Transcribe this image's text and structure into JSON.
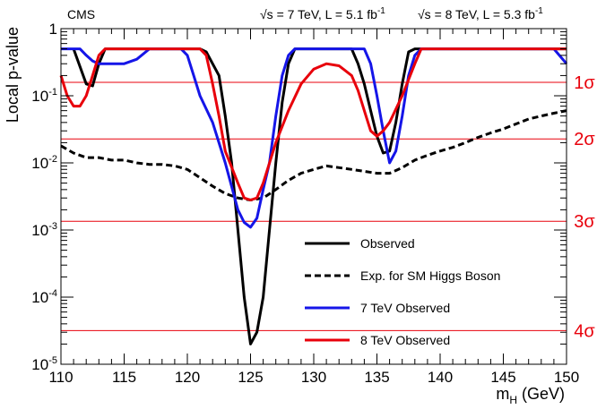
{
  "chart_data": {
    "type": "line",
    "experiment_label": "CMS",
    "energy_label_7": "√s = 7 TeV, L = 5.1 fb",
    "energy_label_8": "√s = 8 TeV, L = 5.3 fb",
    "lumi_unit_sup": "-1",
    "ylabel": "Local p-value",
    "xlabel_main": "m",
    "xlabel_sub": "H",
    "xlabel_unit": " (GeV)",
    "xlim": [
      110,
      150
    ],
    "ylim": [
      1e-05,
      1
    ],
    "yscale": "log",
    "x_ticks": [
      110,
      115,
      120,
      125,
      130,
      135,
      140,
      145,
      150
    ],
    "y_ticks": [
      {
        "value": 1,
        "base": "1",
        "exp": ""
      },
      {
        "value": 0.1,
        "base": "10",
        "exp": "-1"
      },
      {
        "value": 0.01,
        "base": "10",
        "exp": "-2"
      },
      {
        "value": 0.001,
        "base": "10",
        "exp": "-3"
      },
      {
        "value": 0.0001,
        "base": "10",
        "exp": "-4"
      },
      {
        "value": 1e-05,
        "base": "10",
        "exp": "-5"
      }
    ],
    "sigma_lines": [
      {
        "label": "1σ",
        "p": 0.1587
      },
      {
        "label": "2σ",
        "p": 0.02275
      },
      {
        "label": "3σ",
        "p": 0.00135
      },
      {
        "label": "4σ",
        "p": 3.17e-05
      }
    ],
    "series": [
      {
        "name": "Observed",
        "color": "#000000",
        "dash": "solid",
        "points": [
          [
            111,
            0.5
          ],
          [
            112,
            0.15
          ],
          [
            112.5,
            0.14
          ],
          [
            113,
            0.3
          ],
          [
            113.5,
            0.5
          ],
          [
            121,
            0.5
          ],
          [
            121.5,
            0.45
          ],
          [
            122.5,
            0.2
          ],
          [
            123,
            0.05
          ],
          [
            123.5,
            0.01
          ],
          [
            124,
            0.001
          ],
          [
            124.5,
            0.0001
          ],
          [
            125,
            2e-05
          ],
          [
            125.5,
            3e-05
          ],
          [
            126,
            0.0001
          ],
          [
            126.5,
            0.001
          ],
          [
            127,
            0.01
          ],
          [
            127.5,
            0.08
          ],
          [
            128,
            0.3
          ],
          [
            128.5,
            0.5
          ],
          [
            133,
            0.5
          ],
          [
            133.5,
            0.3
          ],
          [
            134,
            0.15
          ],
          [
            134.5,
            0.06
          ],
          [
            135,
            0.025
          ],
          [
            135.5,
            0.014
          ],
          [
            136,
            0.015
          ],
          [
            136.5,
            0.04
          ],
          [
            137,
            0.15
          ],
          [
            137.5,
            0.45
          ],
          [
            138,
            0.5
          ],
          [
            150,
            0.5
          ]
        ]
      },
      {
        "name": "Exp. for SM Higgs Boson",
        "color": "#000000",
        "dash": "dashed",
        "points": [
          [
            110,
            0.018
          ],
          [
            111,
            0.014
          ],
          [
            112,
            0.012
          ],
          [
            113,
            0.012
          ],
          [
            114,
            0.011
          ],
          [
            115,
            0.011
          ],
          [
            116,
            0.01
          ],
          [
            117,
            0.0095
          ],
          [
            118,
            0.0095
          ],
          [
            119,
            0.009
          ],
          [
            120,
            0.008
          ],
          [
            121,
            0.006
          ],
          [
            122,
            0.0045
          ],
          [
            123,
            0.0035
          ],
          [
            124,
            0.003
          ],
          [
            125,
            0.0028
          ],
          [
            126,
            0.003
          ],
          [
            127,
            0.004
          ],
          [
            128,
            0.0055
          ],
          [
            129,
            0.007
          ],
          [
            130,
            0.008
          ],
          [
            131,
            0.009
          ],
          [
            132,
            0.0085
          ],
          [
            133,
            0.008
          ],
          [
            134,
            0.0075
          ],
          [
            135,
            0.007
          ],
          [
            136,
            0.007
          ],
          [
            137,
            0.0085
          ],
          [
            138,
            0.011
          ],
          [
            139,
            0.013
          ],
          [
            140,
            0.015
          ],
          [
            141,
            0.017
          ],
          [
            142,
            0.02
          ],
          [
            143,
            0.024
          ],
          [
            144,
            0.028
          ],
          [
            145,
            0.032
          ],
          [
            146,
            0.038
          ],
          [
            147,
            0.045
          ],
          [
            148,
            0.05
          ],
          [
            149,
            0.055
          ],
          [
            150,
            0.06
          ]
        ]
      },
      {
        "name": "7 TeV Observed",
        "color": "#1515e8",
        "dash": "solid",
        "points": [
          [
            110,
            0.5
          ],
          [
            111.5,
            0.5
          ],
          [
            112,
            0.4
          ],
          [
            112.5,
            0.33
          ],
          [
            113,
            0.3
          ],
          [
            114,
            0.3
          ],
          [
            115,
            0.3
          ],
          [
            116,
            0.35
          ],
          [
            117,
            0.5
          ],
          [
            119.5,
            0.5
          ],
          [
            120,
            0.4
          ],
          [
            120.5,
            0.2
          ],
          [
            121,
            0.1
          ],
          [
            122,
            0.04
          ],
          [
            123,
            0.01
          ],
          [
            124,
            0.002
          ],
          [
            124.5,
            0.0013
          ],
          [
            125,
            0.0011
          ],
          [
            125.5,
            0.0015
          ],
          [
            126,
            0.004
          ],
          [
            126.5,
            0.01
          ],
          [
            127,
            0.05
          ],
          [
            127.5,
            0.2
          ],
          [
            128,
            0.4
          ],
          [
            128.5,
            0.5
          ],
          [
            134,
            0.5
          ],
          [
            134.5,
            0.3
          ],
          [
            135,
            0.1
          ],
          [
            135.5,
            0.03
          ],
          [
            136,
            0.01
          ],
          [
            136.5,
            0.015
          ],
          [
            137,
            0.05
          ],
          [
            137.5,
            0.2
          ],
          [
            138,
            0.4
          ],
          [
            138.5,
            0.5
          ],
          [
            149,
            0.5
          ],
          [
            150,
            0.3
          ]
        ]
      },
      {
        "name": "8 TeV Observed",
        "color": "#e8000b",
        "dash": "solid",
        "points": [
          [
            110,
            0.2
          ],
          [
            110.5,
            0.1
          ],
          [
            111,
            0.07
          ],
          [
            111.5,
            0.07
          ],
          [
            112,
            0.1
          ],
          [
            112.5,
            0.2
          ],
          [
            113,
            0.4
          ],
          [
            113.5,
            0.5
          ],
          [
            121,
            0.5
          ],
          [
            121.5,
            0.4
          ],
          [
            122,
            0.15
          ],
          [
            122.5,
            0.05
          ],
          [
            123,
            0.015
          ],
          [
            124,
            0.005
          ],
          [
            124.5,
            0.003
          ],
          [
            125,
            0.0028
          ],
          [
            125.5,
            0.003
          ],
          [
            126,
            0.005
          ],
          [
            127,
            0.02
          ],
          [
            128,
            0.06
          ],
          [
            129,
            0.15
          ],
          [
            130,
            0.25
          ],
          [
            131,
            0.3
          ],
          [
            132,
            0.28
          ],
          [
            133,
            0.2
          ],
          [
            133.5,
            0.12
          ],
          [
            134,
            0.06
          ],
          [
            134.5,
            0.03
          ],
          [
            135,
            0.025
          ],
          [
            135.5,
            0.03
          ],
          [
            136,
            0.04
          ],
          [
            137,
            0.1
          ],
          [
            138,
            0.3
          ],
          [
            138.5,
            0.5
          ],
          [
            150,
            0.5
          ]
        ]
      }
    ],
    "legend": [
      {
        "label": "Observed",
        "color": "#000000",
        "dash": "solid"
      },
      {
        "label": "Exp. for SM Higgs Boson",
        "color": "#000000",
        "dash": "dashed"
      },
      {
        "label": "7 TeV Observed",
        "color": "#1515e8",
        "dash": "solid"
      },
      {
        "label": "8 TeV Observed",
        "color": "#e8000b",
        "dash": "solid"
      }
    ],
    "legend_position": "bottom-center",
    "grid": false
  }
}
